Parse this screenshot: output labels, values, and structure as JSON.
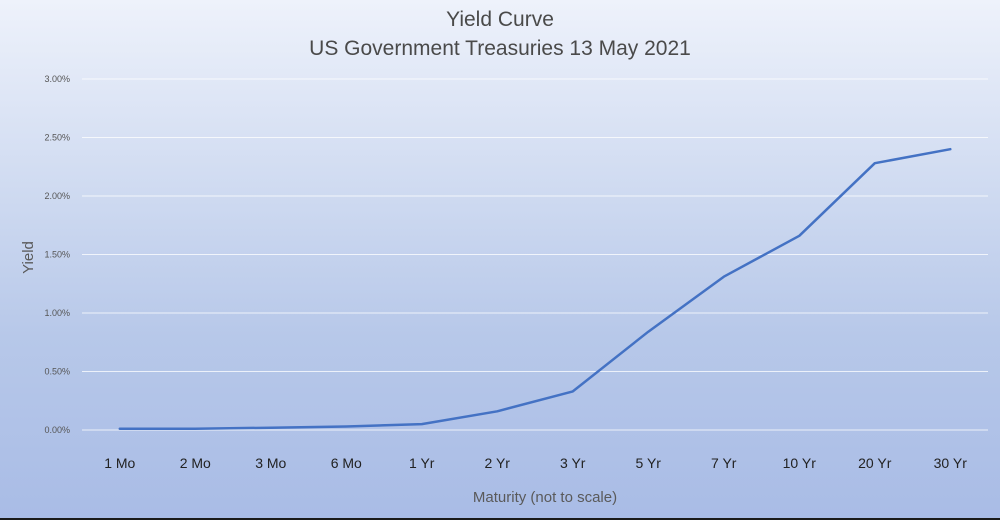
{
  "chart_data": {
    "type": "line",
    "title": "Yield Curve",
    "subtitle": "US Government Treasuries 13 May 2021",
    "xlabel": "Maturity (not to scale)",
    "ylabel": "Yield",
    "categories": [
      "1 Mo",
      "2 Mo",
      "3 Mo",
      "6 Mo",
      "1 Yr",
      "2 Yr",
      "3 Yr",
      "5 Yr",
      "7 Yr",
      "10 Yr",
      "20 Yr",
      "30 Yr"
    ],
    "series": [
      {
        "values": [
          0.0001,
          0.0001,
          0.0002,
          0.0003,
          0.0005,
          0.0016,
          0.0033,
          0.0084,
          0.0131,
          0.0166,
          0.0228,
          0.024
        ],
        "color": "#4472c4"
      }
    ],
    "ylim": [
      0,
      0.03
    ],
    "yticks": [
      "0.00%",
      "0.50%",
      "1.00%",
      "1.50%",
      "2.00%",
      "2.50%",
      "3.00%"
    ],
    "grid": true,
    "legend": "none"
  }
}
